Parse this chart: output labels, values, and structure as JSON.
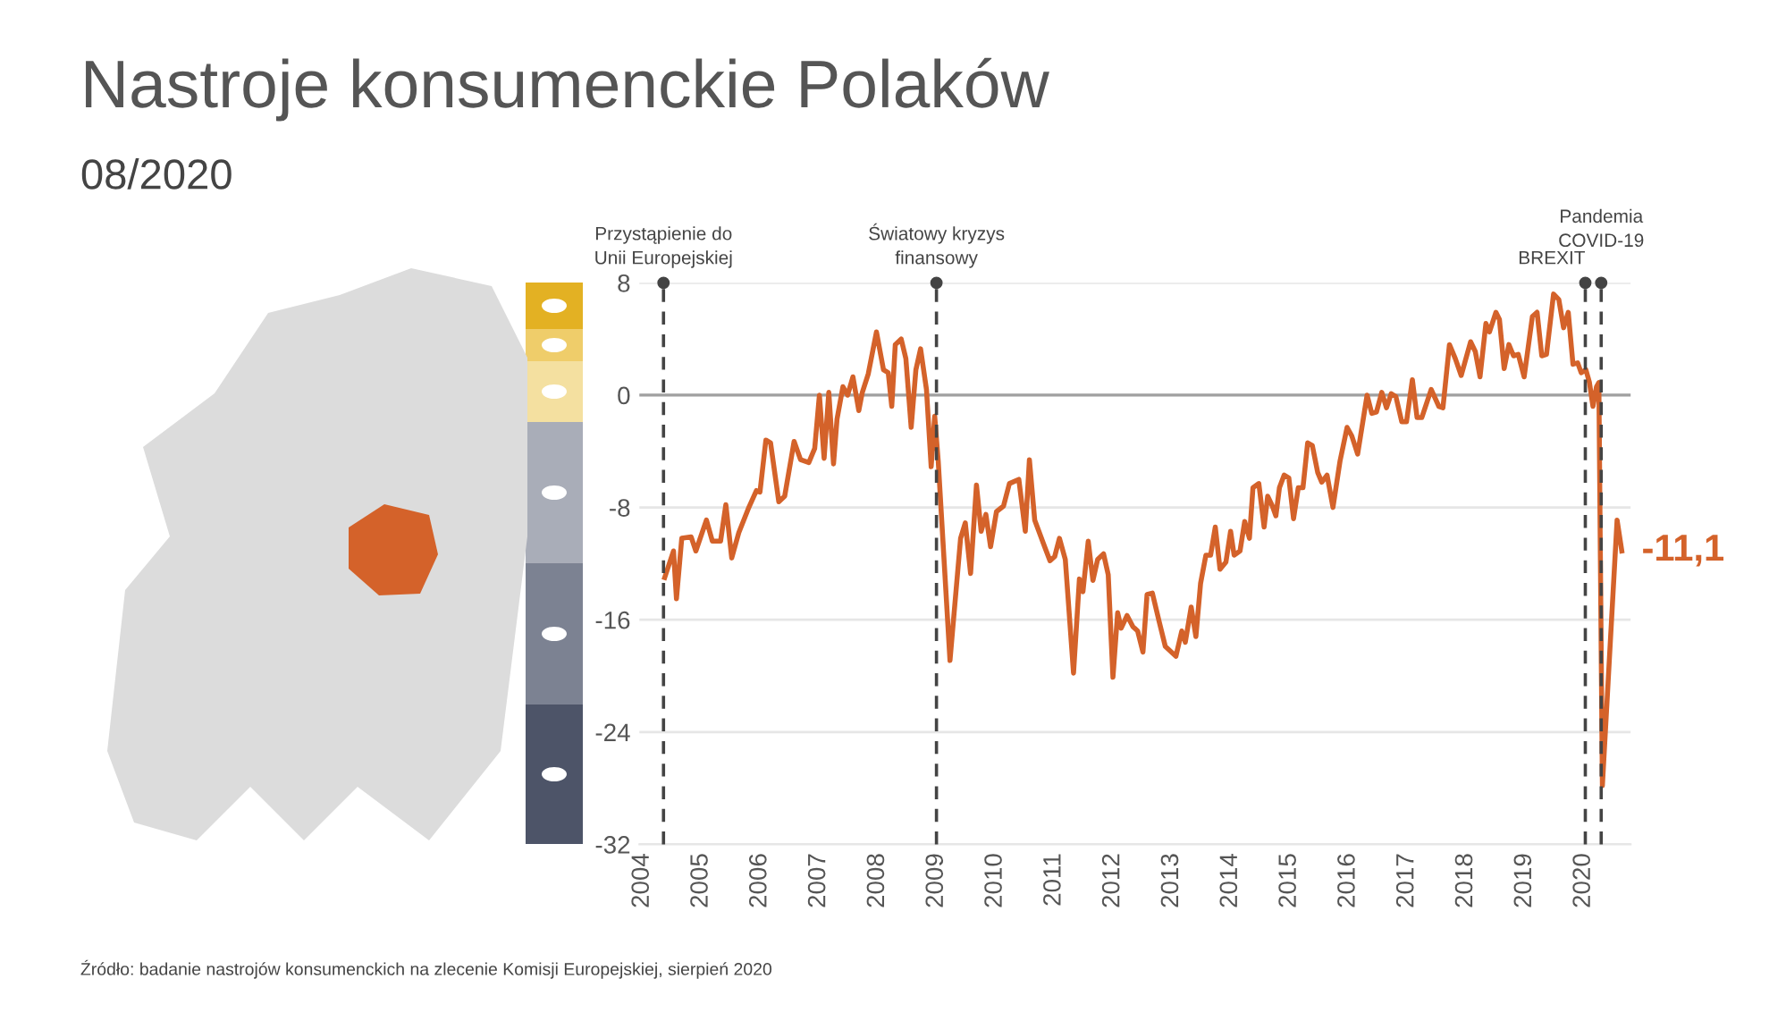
{
  "chart_data": {
    "type": "line",
    "title": "Nastroje konsumenckie Polaków",
    "subtitle": "08/2020",
    "x": [
      2004.38,
      2004.53,
      2004.58,
      2004.67,
      2004.83,
      2004.91,
      2005.09,
      2005.19,
      2005.33,
      2005.42,
      2005.52,
      2005.64,
      2005.8,
      2005.94,
      2006.0,
      2006.1,
      2006.18,
      2006.32,
      2006.42,
      2006.58,
      2006.69,
      2006.83,
      2006.93,
      2007.01,
      2007.09,
      2007.17,
      2007.25,
      2007.31,
      2007.41,
      2007.49,
      2007.58,
      2007.68,
      2007.74,
      2007.84,
      2007.98,
      2008.1,
      2008.18,
      2008.24,
      2008.3,
      2008.4,
      2008.48,
      2008.57,
      2008.65,
      2008.73,
      2008.83,
      2008.91,
      2008.97,
      2009.03,
      2009.23,
      2009.41,
      2009.49,
      2009.58,
      2009.68,
      2009.76,
      2009.84,
      2009.92,
      2010.02,
      2010.14,
      2010.24,
      2010.4,
      2010.51,
      2010.58,
      2010.67,
      2010.83,
      2010.93,
      2011.01,
      2011.09,
      2011.19,
      2011.33,
      2011.43,
      2011.49,
      2011.58,
      2011.66,
      2011.74,
      2011.84,
      2011.92,
      2012.0,
      2012.08,
      2012.14,
      2012.24,
      2012.34,
      2012.42,
      2012.51,
      2012.58,
      2012.67,
      2012.79,
      2012.89,
      2013.07,
      2013.17,
      2013.23,
      2013.33,
      2013.41,
      2013.49,
      2013.58,
      2013.66,
      2013.74,
      2013.82,
      2013.92,
      2014.0,
      2014.06,
      2014.16,
      2014.24,
      2014.32,
      2014.38,
      2014.48,
      2014.57,
      2014.63,
      2014.71,
      2014.77,
      2014.83,
      2014.91,
      2014.99,
      2015.07,
      2015.15,
      2015.23,
      2015.31,
      2015.39,
      2015.48,
      2015.55,
      2015.64,
      2015.74,
      2015.86,
      2015.98,
      2016.06,
      2016.16,
      2016.32,
      2016.4,
      2016.48,
      2016.57,
      2016.65,
      2016.73,
      2016.81,
      2016.91,
      2016.99,
      2017.09,
      2017.17,
      2017.25,
      2017.41,
      2017.54,
      2017.61,
      2017.72,
      2017.82,
      2017.92,
      2018.08,
      2018.16,
      2018.24,
      2018.34,
      2018.4,
      2018.51,
      2018.57,
      2018.65,
      2018.73,
      2018.81,
      2018.89,
      2018.99,
      2019.13,
      2019.21,
      2019.29,
      2019.37,
      2019.49,
      2019.58,
      2019.66,
      2019.74,
      2019.82,
      2019.9,
      2019.96,
      2020.04,
      2020.1,
      2020.16,
      2020.22,
      2020.26,
      2020.32,
      2020.57,
      2020.65
    ],
    "series": [
      {
        "color": "#d4622a",
        "values": [
          -13.0,
          -11.1,
          -14.5,
          -10.2,
          -10.1,
          -11.1,
          -8.9,
          -10.4,
          -10.4,
          -7.8,
          -11.6,
          -9.8,
          -8.1,
          -6.8,
          -6.9,
          -3.2,
          -3.4,
          -7.6,
          -7.2,
          -3.3,
          -4.6,
          -4.8,
          -3.8,
          0.0,
          -4.5,
          0.2,
          -4.9,
          -1.7,
          0.6,
          0.0,
          1.3,
          -1.1,
          0.2,
          1.5,
          4.5,
          1.8,
          1.6,
          -0.8,
          3.6,
          4.0,
          2.6,
          -2.3,
          1.8,
          3.3,
          0.4,
          -5.1,
          -1.5,
          -4.7,
          -18.9,
          -10.2,
          -9.1,
          -12.7,
          -6.4,
          -9.7,
          -8.5,
          -10.8,
          -8.3,
          -7.9,
          -6.3,
          -6.0,
          -9.7,
          -4.6,
          -8.9,
          -10.7,
          -11.8,
          -11.5,
          -10.2,
          -11.7,
          -19.8,
          -13.1,
          -14.0,
          -10.4,
          -13.2,
          -11.7,
          -11.3,
          -12.8,
          -20.1,
          -15.5,
          -16.6,
          -15.7,
          -16.5,
          -16.8,
          -18.3,
          -14.2,
          -14.1,
          -16.2,
          -17.9,
          -18.6,
          -16.8,
          -17.6,
          -15.1,
          -17.2,
          -13.4,
          -11.4,
          -11.4,
          -9.4,
          -12.4,
          -11.9,
          -9.7,
          -11.4,
          -11.1,
          -9.0,
          -10.2,
          -6.6,
          -6.3,
          -9.4,
          -7.2,
          -7.9,
          -8.6,
          -6.6,
          -5.7,
          -5.9,
          -8.8,
          -6.6,
          -6.6,
          -3.4,
          -3.6,
          -5.5,
          -6.2,
          -5.7,
          -8.0,
          -4.7,
          -2.3,
          -2.9,
          -4.2,
          0.0,
          -1.3,
          -1.2,
          0.2,
          -0.9,
          0.1,
          -0.1,
          -1.9,
          -1.9,
          1.1,
          -1.6,
          -1.6,
          0.4,
          -0.8,
          -0.9,
          3.6,
          2.6,
          1.4,
          3.8,
          3.1,
          1.3,
          5.1,
          4.5,
          5.9,
          5.4,
          1.9,
          3.6,
          2.8,
          2.9,
          1.3,
          5.6,
          5.9,
          2.8,
          2.9,
          7.2,
          6.8,
          4.8,
          5.9,
          2.2,
          2.3,
          1.6,
          1.8,
          0.9,
          -0.8,
          0.6,
          0.9,
          -27.8,
          -8.9,
          -11.1
        ]
      }
    ],
    "xlim": [
      2003.95,
      2020.8
    ],
    "xticks": [
      2004,
      2005,
      2006,
      2007,
      2008,
      2009,
      2010,
      2011,
      2012,
      2013,
      2014,
      2015,
      2016,
      2017,
      2018,
      2019,
      2020
    ],
    "ylim": [
      -32,
      8
    ],
    "yticks": [
      -32,
      -24,
      -16,
      -8,
      0,
      8
    ],
    "grid": "y",
    "ref_lines": [
      {
        "axis": "y",
        "value": 0,
        "color": "#a0a0a0",
        "line_style": "solid"
      },
      {
        "axis": "x",
        "value": 2004.36,
        "label": "Przystąpienie do\nUnii Europejskiej",
        "color": "#444444",
        "line_style": "dashed"
      },
      {
        "axis": "x",
        "value": 2009.0,
        "label": "Światowy kryzys\nfinansowy",
        "color": "#444444",
        "line_style": "dashed"
      },
      {
        "axis": "x",
        "value": 2020.03,
        "label": "BREXIT",
        "color": "#444444",
        "line_style": "dashed"
      },
      {
        "axis": "x",
        "value": 2020.3,
        "label": "Pandemia\nCOVID-19",
        "color": "#444444",
        "line_style": "dashed"
      }
    ],
    "annotations": [
      {
        "text": "-11,1",
        "x": 2020.65,
        "y": -11.1
      },
      "Źródło: badanie nastrojów konsumenckich na zlecenie Komisji Europejskiej, sierpień 2020"
    ]
  }
}
